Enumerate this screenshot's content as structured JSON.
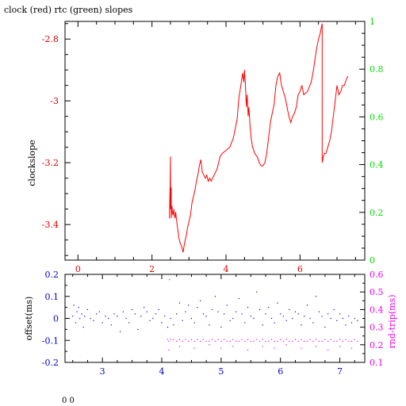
{
  "title": "clock (red) rtc (green) slopes",
  "footer": "0 0",
  "chart_data": [
    {
      "type": "line",
      "x_ticks": [
        "0",
        "2",
        "4",
        "6"
      ],
      "x_tick_values": [
        0,
        2,
        4,
        6
      ],
      "xlim": [
        -0.35,
        7.75
      ],
      "ylabel": "clockslope",
      "y_ticks": [
        "-2.8",
        "-3",
        "-3.2",
        "-3.4"
      ],
      "y_tick_values": [
        -2.8,
        -3.0,
        -3.2,
        -3.4
      ],
      "ylim": [
        -3.515,
        -2.743
      ],
      "y2_ticks": [
        "1",
        "0.8",
        "0.6",
        "0.4",
        "0.2",
        "0"
      ],
      "y2_tick_values": [
        1,
        0.8,
        0.6,
        0.4,
        0.2,
        0
      ],
      "y2lim": [
        0,
        1
      ],
      "colors": {
        "frame": "#000000",
        "left_axis": "#dd0000",
        "right_axis": "#00dd00",
        "series": "#ff0000",
        "x_ticks": "#dd0000"
      },
      "series": [
        {
          "color": "#ff0000",
          "x": [
            2.47,
            2.49,
            2.5,
            2.5,
            2.52,
            2.52,
            2.54,
            2.55,
            2.57,
            2.59,
            2.62,
            2.64,
            2.67,
            2.69,
            2.72,
            2.76,
            2.8,
            2.84,
            2.88,
            2.92,
            2.96,
            3.0,
            3.04,
            3.08,
            3.12,
            3.16,
            3.2,
            3.24,
            3.28,
            3.32,
            3.36,
            3.4,
            3.44,
            3.48,
            3.52,
            3.56,
            3.6,
            3.64,
            3.68,
            3.72,
            3.76,
            3.8,
            3.84,
            3.9,
            4.0,
            4.1,
            4.2,
            4.3,
            4.35,
            4.4,
            4.45,
            4.48,
            4.5,
            4.52,
            4.55,
            4.57,
            4.6,
            4.62,
            4.65,
            4.68,
            4.72,
            4.78,
            4.84,
            4.9,
            4.95,
            5.0,
            5.05,
            5.1,
            5.2,
            5.3,
            5.35,
            5.4,
            5.45,
            5.5,
            5.55,
            5.6,
            5.65,
            5.7,
            5.75,
            5.8,
            5.85,
            5.9,
            5.95,
            6.0,
            6.05,
            6.1,
            6.2,
            6.3,
            6.35,
            6.4,
            6.45,
            6.5,
            6.55,
            6.58,
            6.6,
            6.6,
            6.63,
            6.66,
            6.7,
            6.75,
            6.8,
            6.85,
            6.9,
            6.95,
            7.0,
            7.05,
            7.1,
            7.15,
            7.2,
            7.25,
            7.3
          ],
          "y": [
            -3.38,
            -3.28,
            -3.18,
            -3.35,
            -3.28,
            -3.38,
            -3.34,
            -3.36,
            -3.37,
            -3.35,
            -3.38,
            -3.36,
            -3.39,
            -3.41,
            -3.44,
            -3.46,
            -3.47,
            -3.49,
            -3.46,
            -3.44,
            -3.41,
            -3.39,
            -3.37,
            -3.33,
            -3.31,
            -3.29,
            -3.26,
            -3.24,
            -3.21,
            -3.19,
            -3.23,
            -3.24,
            -3.25,
            -3.24,
            -3.26,
            -3.25,
            -3.26,
            -3.25,
            -3.24,
            -3.23,
            -3.22,
            -3.2,
            -3.18,
            -3.17,
            -3.16,
            -3.15,
            -3.12,
            -3.06,
            -2.99,
            -2.95,
            -2.91,
            -2.94,
            -2.9,
            -2.94,
            -3.02,
            -2.98,
            -3.05,
            -3.02,
            -3.08,
            -3.12,
            -3.15,
            -3.17,
            -3.18,
            -3.2,
            -3.21,
            -3.21,
            -3.2,
            -3.17,
            -3.07,
            -3.01,
            -2.95,
            -2.92,
            -2.91,
            -2.95,
            -2.97,
            -2.99,
            -3.02,
            -3.05,
            -3.07,
            -3.05,
            -3.04,
            -3.02,
            -2.98,
            -2.97,
            -2.95,
            -2.98,
            -2.97,
            -2.94,
            -2.91,
            -2.87,
            -2.83,
            -2.8,
            -2.78,
            -2.76,
            -2.75,
            -3.2,
            -3.18,
            -3.17,
            -3.17,
            -3.15,
            -3.13,
            -3.1,
            -3.05,
            -3.0,
            -2.95,
            -2.98,
            -2.97,
            -2.95,
            -2.95,
            -2.93,
            -2.92
          ]
        }
      ]
    },
    {
      "type": "scatter",
      "x_ticks": [
        "3",
        "4",
        "5",
        "6",
        "7"
      ],
      "x_tick_values": [
        3,
        4,
        5,
        6,
        7
      ],
      "xlim": [
        2.37,
        7.42
      ],
      "ylabel": "offset(ms)",
      "y_ticks": [
        "0.2",
        "0.1",
        "0",
        "-0.1",
        "-0.2"
      ],
      "y_tick_values": [
        0.2,
        0.1,
        0,
        -0.1,
        -0.2
      ],
      "ylim": [
        -0.2,
        0.2
      ],
      "y2label": "rnd-trip(ms)",
      "y2_ticks": [
        "0.6",
        "0.5",
        "0.4",
        "0.3",
        "0.2",
        "0.1"
      ],
      "y2_tick_values": [
        0.6,
        0.5,
        0.4,
        0.3,
        0.2,
        0.1
      ],
      "y2lim": [
        0.1,
        0.6
      ],
      "colors": {
        "frame": "#000000",
        "left_axis": "#0000cc",
        "right_axis": "#ee00ee",
        "offset_points": "#0000dd",
        "rtt_points": "#ee00ee"
      },
      "series": [
        {
          "color": "#0000dd",
          "x": [
            2.5,
            2.52,
            2.55,
            2.57,
            2.6,
            2.62,
            2.65,
            2.68,
            2.7,
            2.75,
            2.8,
            2.85,
            2.9,
            2.95,
            3.0,
            3.05,
            3.1,
            3.15,
            3.2,
            3.25,
            3.3,
            3.35,
            3.4,
            3.45,
            3.5,
            3.55,
            3.6,
            3.65,
            3.7,
            3.75,
            3.8,
            3.85,
            3.9,
            3.95,
            4.0,
            4.05,
            4.1,
            4.15,
            4.2,
            4.25,
            4.3,
            4.35,
            4.4,
            4.45,
            4.5,
            4.55,
            4.6,
            4.65,
            4.7,
            4.75,
            4.8,
            4.85,
            4.9,
            4.95,
            5.0,
            5.05,
            5.1,
            5.15,
            5.2,
            5.25,
            5.3,
            5.35,
            5.4,
            5.45,
            5.5,
            5.55,
            5.6,
            5.65,
            5.7,
            5.75,
            5.8,
            5.85,
            5.9,
            5.95,
            6.0,
            6.05,
            6.1,
            6.15,
            6.2,
            6.25,
            6.3,
            6.35,
            6.4,
            6.45,
            6.5,
            6.55,
            6.6,
            6.65,
            6.7,
            6.75,
            6.8,
            6.85,
            6.9,
            6.95,
            7.0,
            7.05,
            7.1,
            7.15,
            7.2,
            7.25,
            7.3
          ],
          "y": [
            0.01,
            0.06,
            -0.02,
            0.03,
            0.05,
            0.0,
            0.02,
            -0.04,
            0.01,
            0.04,
            0.0,
            -0.01,
            0.02,
            0.03,
            -0.02,
            0.01,
            0.0,
            -0.03,
            0.02,
            0.01,
            -0.06,
            0.03,
            0.0,
            -0.02,
            0.04,
            0.02,
            -0.05,
            0.01,
            0.05,
            0.03,
            -0.01,
            0.0,
            0.02,
            0.04,
            -0.02,
            0.01,
            -0.04,
            0.0,
            -0.03,
            0.02,
            0.07,
            -0.01,
            0.03,
            0.06,
            0.0,
            -0.02,
            0.05,
            0.08,
            0.02,
            0.01,
            -0.03,
            0.04,
            0.1,
            0.03,
            -0.04,
            0.02,
            0.06,
            -0.01,
            0.0,
            0.03,
            0.09,
            0.02,
            -0.02,
            0.05,
            0.01,
            0.0,
            0.12,
            0.04,
            -0.03,
            0.02,
            0.05,
            0.0,
            -0.02,
            0.07,
            0.02,
            0.01,
            -0.01,
            0.04,
            0.0,
            0.03,
            0.02,
            -0.03,
            0.01,
            0.06,
            0.0,
            -0.02,
            0.1,
            0.03,
            0.01,
            -0.04,
            0.02,
            0.0,
            0.04,
            -0.01,
            0.02,
            0.0,
            -0.03,
            0.01,
            -0.02,
            0.0,
            -0.01
          ]
        },
        {
          "color": "#ee00ee",
          "x": [
            4.1,
            4.12,
            4.15,
            4.2,
            4.25,
            4.3,
            4.35,
            4.4,
            4.45,
            4.5,
            4.55,
            4.6,
            4.65,
            4.7,
            4.75,
            4.8,
            4.85,
            4.9,
            4.95,
            5.0,
            5.05,
            5.1,
            5.15,
            5.2,
            5.25,
            5.3,
            5.35,
            5.4,
            5.45,
            5.5,
            5.55,
            5.6,
            5.65,
            5.7,
            5.75,
            5.8,
            5.85,
            5.9,
            5.95,
            6.0,
            6.05,
            6.1,
            6.15,
            6.2,
            6.25,
            6.3,
            6.35,
            6.4,
            6.45,
            6.5,
            6.55,
            6.6,
            6.65,
            6.7,
            6.75,
            6.8,
            6.85,
            6.9,
            6.95,
            7.0,
            7.05,
            7.1,
            7.15,
            7.2,
            7.25,
            7.3,
            4.12,
            4.3,
            4.55,
            4.8,
            5.0,
            5.2,
            5.45,
            5.7,
            5.9,
            6.1,
            6.35,
            6.6,
            6.8,
            7.0,
            7.2,
            4.13
          ],
          "y": [
            0.23,
            0.22,
            0.23,
            0.23,
            0.22,
            0.23,
            0.22,
            0.23,
            0.22,
            0.23,
            0.22,
            0.23,
            0.22,
            0.23,
            0.22,
            0.22,
            0.23,
            0.22,
            0.23,
            0.22,
            0.23,
            0.22,
            0.22,
            0.23,
            0.22,
            0.22,
            0.23,
            0.22,
            0.23,
            0.22,
            0.22,
            0.23,
            0.22,
            0.23,
            0.22,
            0.22,
            0.23,
            0.22,
            0.22,
            0.23,
            0.22,
            0.23,
            0.22,
            0.22,
            0.23,
            0.22,
            0.23,
            0.22,
            0.22,
            0.23,
            0.22,
            0.23,
            0.22,
            0.22,
            0.23,
            0.22,
            0.23,
            0.22,
            0.22,
            0.23,
            0.22,
            0.23,
            0.22,
            0.22,
            0.23,
            0.22,
            0.17,
            0.19,
            0.18,
            0.2,
            0.18,
            0.19,
            0.17,
            0.19,
            0.18,
            0.2,
            0.18,
            0.19,
            0.17,
            0.19,
            0.18,
            0.57
          ]
        }
      ]
    }
  ]
}
